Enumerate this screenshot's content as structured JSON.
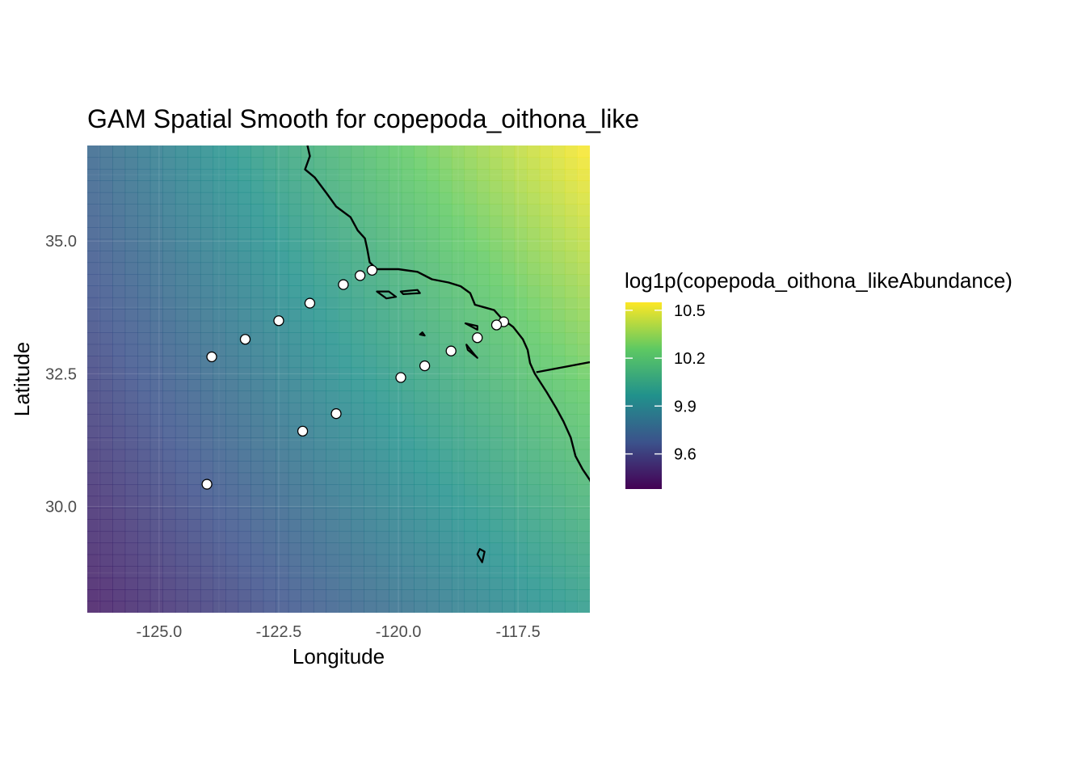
{
  "chart_data": {
    "type": "heatmap",
    "title": "GAM Spatial Smooth for copepoda_oithona_like",
    "xlabel": "Longitude",
    "ylabel": "Latitude",
    "xlim": [
      -126.5,
      -116.0
    ],
    "ylim": [
      28.0,
      36.8
    ],
    "x_ticks": [
      -125.0,
      -122.5,
      -120.0,
      -117.5
    ],
    "x_tick_labels": [
      "-125.0",
      "-122.5",
      "-120.0",
      "-117.5"
    ],
    "y_ticks": [
      30.0,
      32.5,
      35.0
    ],
    "y_tick_labels": [
      "30.0",
      "32.5",
      "35.0"
    ],
    "fill_surface": {
      "description_free": true,
      "corners": {
        "bottom_left": 9.45,
        "top_left": 9.75,
        "bottom_right": 10.0,
        "top_right": 10.55
      },
      "gradient": [
        0.62,
        0.18
      ]
    },
    "colorbar": {
      "title": "log1p(copepoda_oithona_likeAbundance)",
      "range": [
        9.38,
        10.55
      ],
      "ticks": [
        9.6,
        9.9,
        10.2,
        10.5
      ],
      "tick_labels": [
        "9.6",
        "9.9",
        "10.2",
        "10.5"
      ],
      "colormap": [
        "#440154",
        "#3b528b",
        "#21918c",
        "#5ec962",
        "#fde725"
      ]
    },
    "stations": [
      {
        "lon": -120.55,
        "lat": 34.45
      },
      {
        "lon": -120.8,
        "lat": 34.35
      },
      {
        "lon": -121.15,
        "lat": 34.18
      },
      {
        "lon": -121.85,
        "lat": 33.83
      },
      {
        "lon": -122.5,
        "lat": 33.5
      },
      {
        "lon": -123.2,
        "lat": 33.15
      },
      {
        "lon": -123.9,
        "lat": 32.82
      },
      {
        "lon": -117.8,
        "lat": 33.48
      },
      {
        "lon": -117.95,
        "lat": 33.42
      },
      {
        "lon": -118.35,
        "lat": 33.18
      },
      {
        "lon": -118.9,
        "lat": 32.93
      },
      {
        "lon": -119.45,
        "lat": 32.65
      },
      {
        "lon": -119.95,
        "lat": 32.43
      },
      {
        "lon": -121.3,
        "lat": 31.75
      },
      {
        "lon": -122.0,
        "lat": 31.42
      },
      {
        "lon": -124.0,
        "lat": 30.42
      }
    ],
    "coastline": [
      [
        -121.9,
        36.8
      ],
      [
        -121.85,
        36.6
      ],
      [
        -121.95,
        36.35
      ],
      [
        -121.75,
        36.2
      ],
      [
        -121.5,
        35.9
      ],
      [
        -121.3,
        35.65
      ],
      [
        -121.0,
        35.45
      ],
      [
        -120.85,
        35.2
      ],
      [
        -120.7,
        35.05
      ],
      [
        -120.65,
        34.85
      ],
      [
        -120.6,
        34.6
      ],
      [
        -120.45,
        34.47
      ],
      [
        -120.0,
        34.47
      ],
      [
        -119.6,
        34.42
      ],
      [
        -119.3,
        34.28
      ],
      [
        -118.95,
        34.22
      ],
      [
        -118.7,
        34.15
      ],
      [
        -118.5,
        34.02
      ],
      [
        -118.4,
        33.8
      ],
      [
        -118.2,
        33.75
      ],
      [
        -118.0,
        33.7
      ],
      [
        -117.85,
        33.55
      ],
      [
        -117.6,
        33.38
      ],
      [
        -117.4,
        33.15
      ],
      [
        -117.3,
        32.95
      ],
      [
        -117.25,
        32.7
      ],
      [
        -117.15,
        32.5
      ],
      [
        -116.9,
        32.15
      ],
      [
        -116.7,
        31.85
      ],
      [
        -116.55,
        31.6
      ],
      [
        -116.4,
        31.3
      ],
      [
        -116.3,
        30.95
      ],
      [
        -116.15,
        30.7
      ],
      [
        -116.0,
        30.5
      ],
      [
        -115.8,
        30.1
      ],
      [
        -115.6,
        29.8
      ]
    ],
    "border": [
      [
        -117.12,
        32.53
      ],
      [
        -116.0,
        32.72
      ]
    ],
    "islands": [
      [
        [
          -120.45,
          34.05
        ],
        [
          -120.2,
          34.05
        ],
        [
          -120.05,
          33.95
        ],
        [
          -120.25,
          33.92
        ],
        [
          -120.45,
          34.05
        ]
      ],
      [
        [
          -119.95,
          34.05
        ],
        [
          -119.6,
          34.08
        ],
        [
          -119.55,
          34.02
        ],
        [
          -119.9,
          34.0
        ],
        [
          -119.95,
          34.05
        ]
      ],
      [
        [
          -119.5,
          33.28
        ],
        [
          -119.45,
          33.22
        ],
        [
          -119.55,
          33.24
        ],
        [
          -119.5,
          33.28
        ]
      ],
      [
        [
          -118.6,
          33.45
        ],
        [
          -118.35,
          33.4
        ],
        [
          -118.35,
          33.33
        ],
        [
          -118.6,
          33.45
        ]
      ],
      [
        [
          -118.58,
          33.05
        ],
        [
          -118.4,
          32.85
        ],
        [
          -118.35,
          32.8
        ],
        [
          -118.55,
          32.95
        ],
        [
          -118.58,
          33.05
        ]
      ],
      [
        [
          -118.3,
          29.2
        ],
        [
          -118.2,
          29.15
        ],
        [
          -118.25,
          28.95
        ],
        [
          -118.35,
          29.1
        ],
        [
          -118.3,
          29.2
        ]
      ]
    ]
  }
}
